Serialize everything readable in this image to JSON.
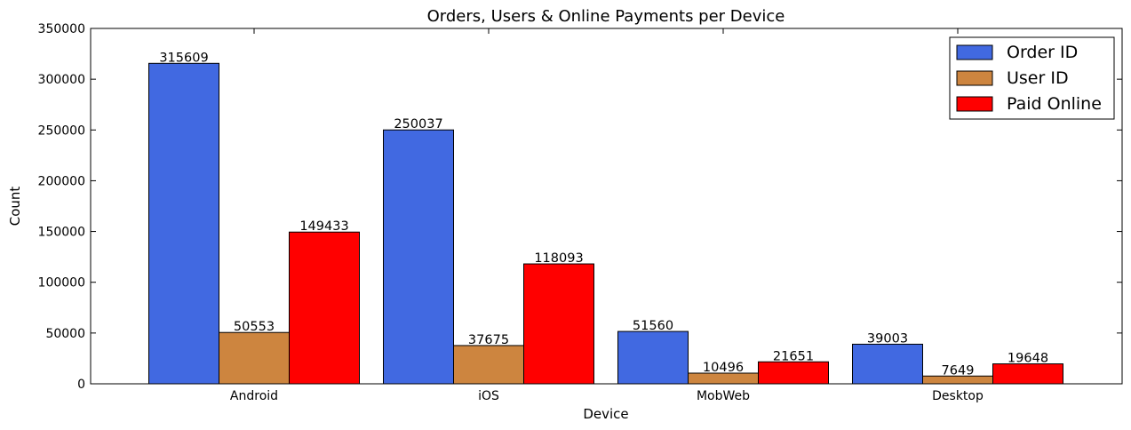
{
  "chart_data": {
    "type": "bar",
    "title": "Orders, Users & Online Payments per Device",
    "xlabel": "Device",
    "ylabel": "Count",
    "categories": [
      "Android",
      "iOS",
      "MobWeb",
      "Desktop"
    ],
    "ylim": [
      0,
      350000
    ],
    "yticks": [
      "0",
      "50000",
      "100000",
      "150000",
      "200000",
      "250000",
      "300000",
      "350000"
    ],
    "grid": false,
    "legend_position": "top-right",
    "series": [
      {
        "name": "Order ID",
        "color": "#4169e1",
        "values": [
          315609,
          250037,
          51560,
          39003
        ]
      },
      {
        "name": "User ID",
        "color": "#cd853f",
        "values": [
          50553,
          37675,
          10496,
          7649
        ]
      },
      {
        "name": "Paid Online",
        "color": "#ff0000",
        "values": [
          149433,
          118093,
          21651,
          19648
        ]
      }
    ]
  }
}
